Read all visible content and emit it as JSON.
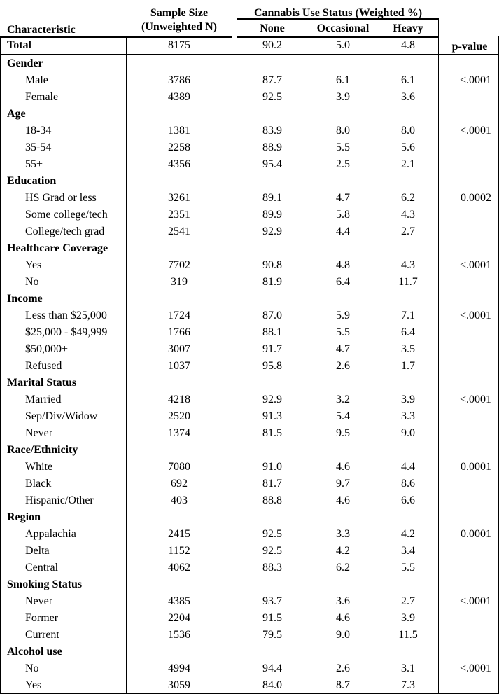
{
  "header": {
    "characteristic": "Characteristic",
    "sample_size_line1": "Sample Size",
    "sample_size_line2": "(Unweighted N)",
    "cannabis_title": "Cannabis Use Status (Weighted %)",
    "none": "None",
    "occasional": "Occasional",
    "heavy": "Heavy",
    "p_value": "p-value"
  },
  "total": {
    "label": "Total",
    "n": "8175",
    "none": "90.2",
    "occasional": "5.0",
    "heavy": "4.8"
  },
  "groups": [
    {
      "title": "Gender",
      "rows": [
        {
          "label": "Male",
          "n": "3786",
          "none": "87.7",
          "occasional": "6.1",
          "heavy": "6.1",
          "p": "<.0001"
        },
        {
          "label": "Female",
          "n": "4389",
          "none": "92.5",
          "occasional": "3.9",
          "heavy": "3.6",
          "p": ""
        }
      ]
    },
    {
      "title": "Age",
      "rows": [
        {
          "label": "18-34",
          "n": "1381",
          "none": "83.9",
          "occasional": "8.0",
          "heavy": "8.0",
          "p": "<.0001"
        },
        {
          "label": "35-54",
          "n": "2258",
          "none": "88.9",
          "occasional": "5.5",
          "heavy": "5.6",
          "p": ""
        },
        {
          "label": "55+",
          "n": "4356",
          "none": "95.4",
          "occasional": "2.5",
          "heavy": "2.1",
          "p": ""
        }
      ]
    },
    {
      "title": "Education",
      "rows": [
        {
          "label": "HS Grad or less",
          "n": "3261",
          "none": "89.1",
          "occasional": "4.7",
          "heavy": "6.2",
          "p": "0.0002"
        },
        {
          "label": "Some college/tech",
          "n": "2351",
          "none": "89.9",
          "occasional": "5.8",
          "heavy": "4.3",
          "p": ""
        },
        {
          "label": "College/tech grad",
          "n": "2541",
          "none": "92.9",
          "occasional": "4.4",
          "heavy": "2.7",
          "p": ""
        }
      ]
    },
    {
      "title": "Healthcare Coverage",
      "rows": [
        {
          "label": "Yes",
          "n": "7702",
          "none": "90.8",
          "occasional": "4.8",
          "heavy": "4.3",
          "p": "<.0001"
        },
        {
          "label": "No",
          "n": "319",
          "none": "81.9",
          "occasional": "6.4",
          "heavy": "11.7",
          "p": ""
        }
      ]
    },
    {
      "title": "Income",
      "rows": [
        {
          "label": "Less than $25,000",
          "n": "1724",
          "none": "87.0",
          "occasional": "5.9",
          "heavy": "7.1",
          "p": "<.0001"
        },
        {
          "label": "$25,000 - $49,999",
          "n": "1766",
          "none": "88.1",
          "occasional": "5.5",
          "heavy": "6.4",
          "p": ""
        },
        {
          "label": "$50,000+",
          "n": "3007",
          "none": "91.7",
          "occasional": "4.7",
          "heavy": "3.5",
          "p": ""
        },
        {
          "label": "Refused",
          "n": "1037",
          "none": "95.8",
          "occasional": "2.6",
          "heavy": "1.7",
          "p": ""
        }
      ]
    },
    {
      "title": "Marital Status",
      "rows": [
        {
          "label": "Married",
          "n": "4218",
          "none": "92.9",
          "occasional": "3.2",
          "heavy": "3.9",
          "p": "<.0001"
        },
        {
          "label": "Sep/Div/Widow",
          "n": "2520",
          "none": "91.3",
          "occasional": "5.4",
          "heavy": "3.3",
          "p": ""
        },
        {
          "label": "Never",
          "n": "1374",
          "none": "81.5",
          "occasional": "9.5",
          "heavy": "9.0",
          "p": ""
        }
      ]
    },
    {
      "title": "Race/Ethnicity",
      "rows": [
        {
          "label": "White",
          "n": "7080",
          "none": "91.0",
          "occasional": "4.6",
          "heavy": "4.4",
          "p": "0.0001"
        },
        {
          "label": "Black",
          "n": "692",
          "none": "81.7",
          "occasional": "9.7",
          "heavy": "8.6",
          "p": ""
        },
        {
          "label": "Hispanic/Other",
          "n": "403",
          "none": "88.8",
          "occasional": "4.6",
          "heavy": "6.6",
          "p": ""
        }
      ]
    },
    {
      "title": "Region",
      "rows": [
        {
          "label": "Appalachia",
          "n": "2415",
          "none": "92.5",
          "occasional": "3.3",
          "heavy": "4.2",
          "p": "0.0001"
        },
        {
          "label": "Delta",
          "n": "1152",
          "none": "92.5",
          "occasional": "4.2",
          "heavy": "3.4",
          "p": ""
        },
        {
          "label": "Central",
          "n": "4062",
          "none": "88.3",
          "occasional": "6.2",
          "heavy": "5.5",
          "p": ""
        }
      ]
    },
    {
      "title": "Smoking Status",
      "rows": [
        {
          "label": "Never",
          "n": "4385",
          "none": "93.7",
          "occasional": "3.6",
          "heavy": "2.7",
          "p": "<.0001"
        },
        {
          "label": "Former",
          "n": "2204",
          "none": "91.5",
          "occasional": "4.6",
          "heavy": "3.9",
          "p": ""
        },
        {
          "label": "Current",
          "n": "1536",
          "none": "79.5",
          "occasional": "9.0",
          "heavy": "11.5",
          "p": ""
        }
      ]
    },
    {
      "title": "Alcohol use",
      "rows": [
        {
          "label": "No",
          "n": "4994",
          "none": "94.4",
          "occasional": "2.6",
          "heavy": "3.1",
          "p": "<.0001"
        },
        {
          "label": "Yes",
          "n": "3059",
          "none": "84.0",
          "occasional": "8.7",
          "heavy": "7.3",
          "p": ""
        }
      ]
    }
  ]
}
